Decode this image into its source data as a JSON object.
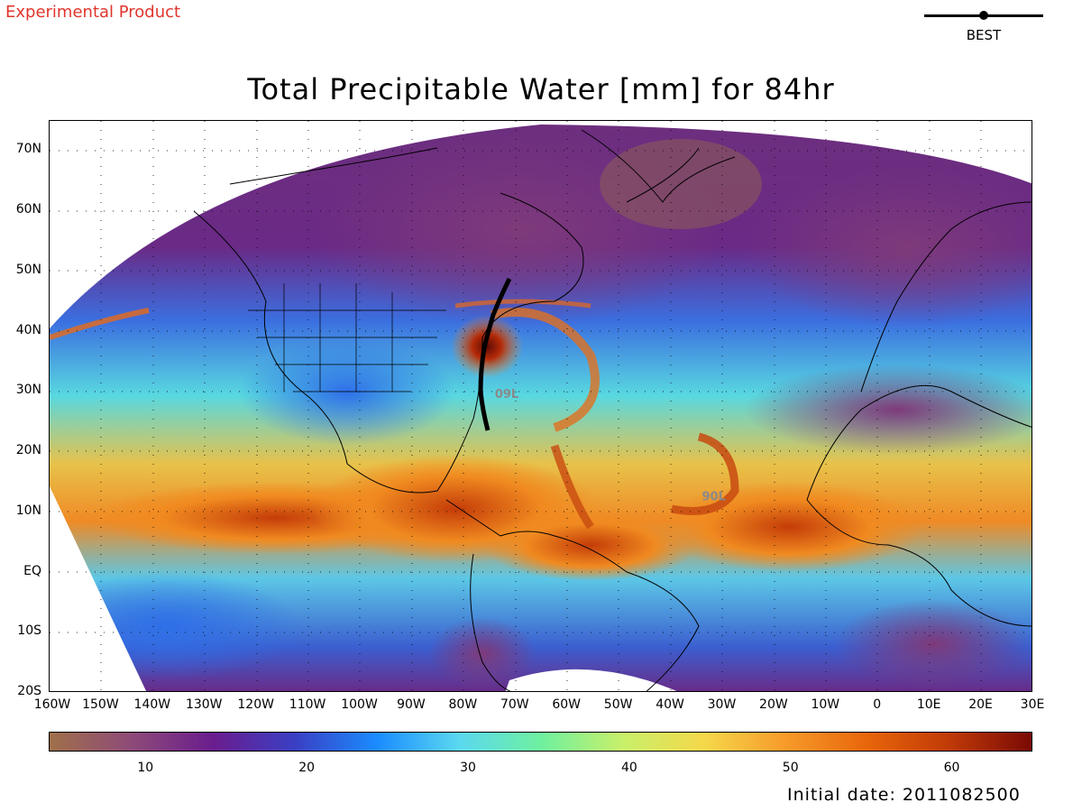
{
  "header": {
    "product_label": "Experimental Product",
    "legend_label": "BEST",
    "title": "Total Precipitable Water [mm] for 84hr"
  },
  "map": {
    "lat_labels": [
      "70N",
      "60N",
      "50N",
      "40N",
      "30N",
      "20N",
      "10N",
      "EQ",
      "10S",
      "20S"
    ],
    "lon_labels": [
      "160W",
      "150W",
      "140W",
      "130W",
      "120W",
      "110W",
      "100W",
      "90W",
      "80W",
      "70W",
      "60W",
      "50W",
      "40W",
      "30W",
      "20W",
      "10W",
      "0",
      "10E",
      "20E",
      "30E"
    ],
    "storms": [
      {
        "label": "09L",
        "lon": -74,
        "lat": 29
      },
      {
        "label": "90L",
        "lon": -34,
        "lat": 12
      }
    ],
    "extent": {
      "lon_min": -160,
      "lon_max": 30,
      "lat_min": -20,
      "lat_max": 75
    },
    "storm_label_color": "#8a8a8a"
  },
  "colorbar": {
    "tick_labels": [
      "10",
      "20",
      "30",
      "40",
      "50",
      "60"
    ],
    "tick_values": [
      10,
      20,
      30,
      40,
      50,
      60
    ],
    "range": [
      4,
      65
    ],
    "colors": [
      "#a0704a",
      "#8e4a78",
      "#6a1d8e",
      "#3a3fc4",
      "#1a8cff",
      "#5ad8f0",
      "#6ef0a0",
      "#c8f06a",
      "#f5d84a",
      "#f79a2a",
      "#e8650a",
      "#c03a08",
      "#7a0a05"
    ]
  },
  "footer": {
    "initial_date": "Initial date: 2011082500"
  }
}
